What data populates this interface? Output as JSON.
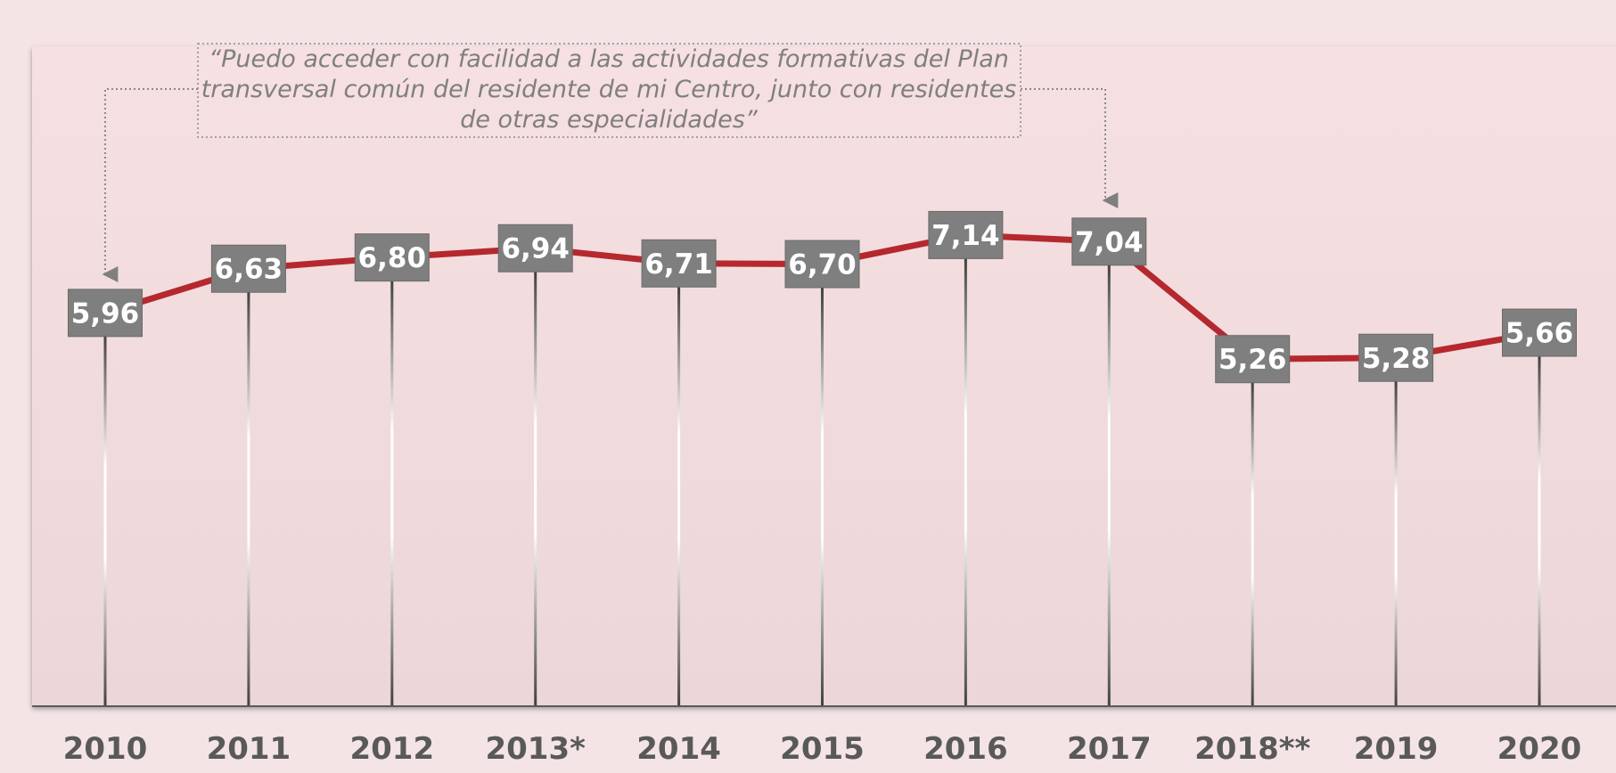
{
  "chart_data": {
    "type": "line",
    "annotation_lines": [
      "“Puedo acceder con facilidad a las actividades formativas del Plan",
      "transversal común del residente de mi Centro, junto con residentes",
      "de otras especialidades”"
    ],
    "categories": [
      "2010",
      "2011",
      "2012",
      "2013*",
      "2014",
      "2015",
      "2016",
      "2017",
      "2018**",
      "2019",
      "2020"
    ],
    "values": [
      5.96,
      6.63,
      6.8,
      6.94,
      6.71,
      6.7,
      7.14,
      7.04,
      5.26,
      5.28,
      5.66
    ],
    "value_labels": [
      "5,96",
      "6,63",
      "6,80",
      "6,94",
      "6,71",
      "6,70",
      "7,14",
      "7,04",
      "5,26",
      "5,28",
      "5,66"
    ],
    "color": "#b5282e",
    "ylim": [
      0,
      10
    ]
  }
}
